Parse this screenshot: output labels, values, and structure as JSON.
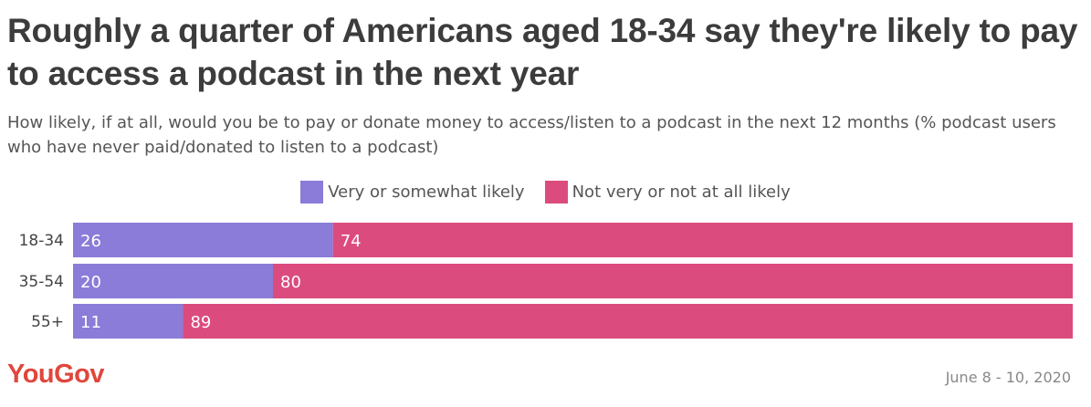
{
  "header": {
    "title": "Roughly a quarter of Americans aged 18-34 say they're likely to pay to access a podcast in the next year",
    "subtitle": "How likely, if at all, would you be to pay or donate money to access/listen to a podcast in the next 12 months (% podcast users who have never paid/donated to listen to a podcast)"
  },
  "footer": {
    "logo": "YouGov",
    "date": "June 8 - 10, 2020"
  },
  "colors": {
    "likely": "#8a7cd8",
    "not_likely": "#dc4b7e",
    "brand": "#e0463c"
  },
  "chart_data": {
    "type": "bar",
    "orientation": "horizontal",
    "stacked": true,
    "title": "Roughly a quarter of Americans aged 18-34 say they're likely to pay to access a podcast in the next year",
    "categories": [
      "18-34",
      "35-54",
      "55+"
    ],
    "series": [
      {
        "name": "Very or somewhat likely",
        "values": [
          26,
          20,
          11
        ]
      },
      {
        "name": "Not very or not at all likely",
        "values": [
          74,
          80,
          89
        ]
      }
    ],
    "xlim": [
      0,
      100
    ],
    "legend_position": "top-center",
    "grid": false
  }
}
